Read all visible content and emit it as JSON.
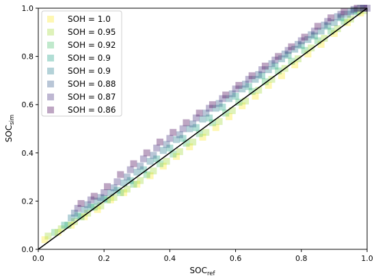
{
  "chart_data": {
    "type": "scatter",
    "xlabel": "SOC",
    "xlabel_sub": "ref",
    "ylabel": "SOC",
    "ylabel_sub": "sim",
    "xlim": [
      0.0,
      1.0
    ],
    "ylim": [
      0.0,
      1.0
    ],
    "x_ticks": [
      "0.0",
      "0.2",
      "0.4",
      "0.6",
      "0.8",
      "1.0"
    ],
    "y_ticks": [
      "0.0",
      "0.2",
      "0.4",
      "0.6",
      "0.8",
      "1.0"
    ],
    "grid": false,
    "legend_position": "top-left",
    "marker": "square",
    "reference_line": {
      "x": [
        0.0,
        1.0
      ],
      "y": [
        0.0,
        1.0
      ],
      "color": "#000000"
    },
    "series": [
      {
        "name": "SOH = 1.0",
        "color": "#fde725",
        "x": [
          0.02,
          0.06,
          0.1,
          0.14,
          0.18,
          0.22,
          0.26,
          0.3,
          0.34,
          0.38,
          0.42,
          0.46,
          0.5,
          0.54,
          0.58,
          0.62,
          0.66,
          0.7,
          0.74,
          0.78,
          0.82,
          0.86,
          0.9,
          0.94,
          0.98
        ],
        "y": [
          0.04,
          0.07,
          0.1,
          0.135,
          0.165,
          0.205,
          0.235,
          0.27,
          0.305,
          0.345,
          0.385,
          0.425,
          0.465,
          0.505,
          0.55,
          0.595,
          0.635,
          0.68,
          0.72,
          0.765,
          0.81,
          0.85,
          0.895,
          0.94,
          0.98
        ]
      },
      {
        "name": "SOH = 0.95",
        "color": "#a0da39",
        "x": [
          0.03,
          0.07,
          0.11,
          0.15,
          0.19,
          0.23,
          0.27,
          0.31,
          0.35,
          0.39,
          0.43,
          0.47,
          0.51,
          0.55,
          0.59,
          0.63,
          0.67,
          0.71,
          0.75,
          0.79,
          0.83,
          0.87,
          0.91,
          0.95,
          0.99
        ],
        "y": [
          0.055,
          0.085,
          0.115,
          0.15,
          0.18,
          0.215,
          0.25,
          0.285,
          0.325,
          0.365,
          0.405,
          0.445,
          0.485,
          0.53,
          0.575,
          0.615,
          0.66,
          0.705,
          0.75,
          0.79,
          0.835,
          0.875,
          0.915,
          0.955,
          0.99
        ]
      },
      {
        "name": "SOH = 0.92",
        "color": "#4ac16d",
        "x": [
          0.05,
          0.09,
          0.13,
          0.17,
          0.21,
          0.25,
          0.29,
          0.33,
          0.37,
          0.41,
          0.45,
          0.49,
          0.53,
          0.57,
          0.61,
          0.65,
          0.69,
          0.73,
          0.77,
          0.81,
          0.85,
          0.89,
          0.93,
          0.97
        ],
        "y": [
          0.07,
          0.1,
          0.135,
          0.175,
          0.205,
          0.235,
          0.27,
          0.31,
          0.355,
          0.395,
          0.44,
          0.48,
          0.525,
          0.565,
          0.61,
          0.655,
          0.695,
          0.74,
          0.78,
          0.825,
          0.865,
          0.905,
          0.945,
          0.985
        ]
      },
      {
        "name": "SOH = 0.9",
        "color": "#1fa187",
        "x": [
          0.08,
          0.12,
          0.16,
          0.2,
          0.24,
          0.28,
          0.32,
          0.36,
          0.4,
          0.44,
          0.48,
          0.52,
          0.56,
          0.6,
          0.64,
          0.68,
          0.72,
          0.76,
          0.8,
          0.84,
          0.88,
          0.92,
          0.96
        ],
        "y": [
          0.1,
          0.14,
          0.175,
          0.21,
          0.245,
          0.285,
          0.33,
          0.375,
          0.42,
          0.46,
          0.505,
          0.545,
          0.59,
          0.635,
          0.675,
          0.72,
          0.76,
          0.805,
          0.845,
          0.885,
          0.925,
          0.96,
          0.99
        ]
      },
      {
        "name": "SOH = 0.9",
        "color": "#277f8e",
        "x": [
          0.1,
          0.14,
          0.18,
          0.22,
          0.26,
          0.3,
          0.34,
          0.38,
          0.42,
          0.46,
          0.5,
          0.54,
          0.58,
          0.62,
          0.66,
          0.7,
          0.74,
          0.78,
          0.82,
          0.86,
          0.9,
          0.94,
          0.98
        ],
        "y": [
          0.13,
          0.165,
          0.2,
          0.235,
          0.275,
          0.32,
          0.365,
          0.41,
          0.455,
          0.5,
          0.54,
          0.585,
          0.625,
          0.665,
          0.705,
          0.745,
          0.79,
          0.83,
          0.87,
          0.905,
          0.94,
          0.975,
          1.0
        ]
      },
      {
        "name": "SOH = 0.88",
        "color": "#365c8d",
        "x": [
          0.11,
          0.15,
          0.19,
          0.23,
          0.27,
          0.31,
          0.35,
          0.39,
          0.43,
          0.47,
          0.51,
          0.55,
          0.59,
          0.63,
          0.67,
          0.71,
          0.75,
          0.79,
          0.83,
          0.87,
          0.91,
          0.95,
          0.99
        ],
        "y": [
          0.15,
          0.185,
          0.215,
          0.255,
          0.3,
          0.345,
          0.39,
          0.435,
          0.475,
          0.52,
          0.565,
          0.605,
          0.645,
          0.685,
          0.725,
          0.77,
          0.81,
          0.85,
          0.89,
          0.93,
          0.965,
          0.985,
          1.0
        ]
      },
      {
        "name": "SOH = 0.87",
        "color": "#46327e",
        "x": [
          0.12,
          0.16,
          0.2,
          0.24,
          0.28,
          0.32,
          0.36,
          0.4,
          0.44,
          0.48,
          0.52,
          0.56,
          0.6,
          0.64,
          0.68,
          0.72,
          0.76,
          0.8,
          0.84,
          0.88,
          0.92,
          0.96,
          1.0
        ],
        "y": [
          0.17,
          0.205,
          0.235,
          0.28,
          0.33,
          0.375,
          0.42,
          0.46,
          0.5,
          0.545,
          0.585,
          0.625,
          0.665,
          0.705,
          0.745,
          0.785,
          0.825,
          0.865,
          0.905,
          0.945,
          0.975,
          0.995,
          1.0
        ]
      },
      {
        "name": "SOH = 0.86",
        "color": "#440154",
        "x": [
          0.13,
          0.17,
          0.21,
          0.25,
          0.29,
          0.33,
          0.37,
          0.41,
          0.45,
          0.49,
          0.53,
          0.57,
          0.61,
          0.65,
          0.69,
          0.73,
          0.77,
          0.81,
          0.85,
          0.89,
          0.93,
          0.97,
          0.99
        ],
        "y": [
          0.19,
          0.22,
          0.26,
          0.31,
          0.355,
          0.4,
          0.445,
          0.485,
          0.525,
          0.565,
          0.6,
          0.64,
          0.68,
          0.72,
          0.76,
          0.8,
          0.84,
          0.88,
          0.925,
          0.96,
          0.985,
          1.0,
          1.0
        ]
      }
    ]
  }
}
